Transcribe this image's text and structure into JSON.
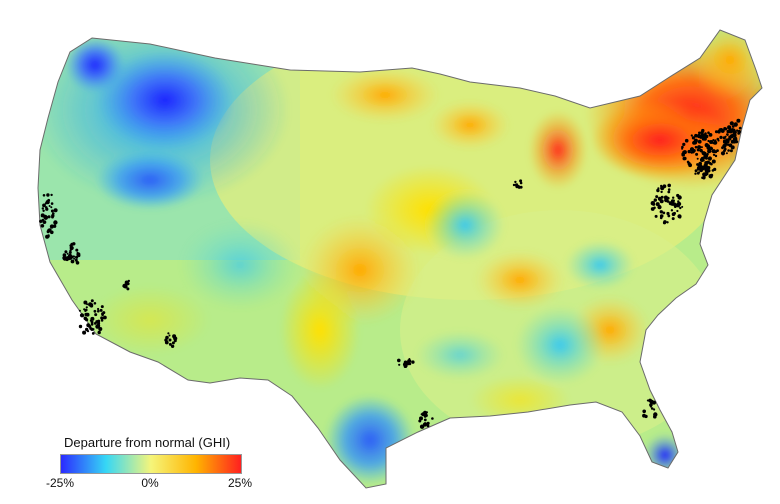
{
  "legend": {
    "title": "Departure from normal (GHI)",
    "ticks": [
      "-25%",
      "0%",
      "25%"
    ],
    "colors": [
      "#2b2bff",
      "#36d7f5",
      "#f5f57a",
      "#ffb400",
      "#ff2020"
    ]
  },
  "map": {
    "subject": "contiguous United States",
    "value_range_percent": [
      -25,
      25
    ],
    "features": {
      "solar_site_markers": "black dots",
      "state_outline_color": "#6b6b6b"
    },
    "notable_regions": [
      {
        "region": "northwest (Washington/Idaho/Montana)",
        "departure": "about -20% to -25%"
      },
      {
        "region": "northeast (New York/New England)",
        "departure": "about +20% to +25%"
      },
      {
        "region": "southern Texas",
        "departure": "about -15%"
      },
      {
        "region": "southern Florida",
        "departure": "about -20%"
      },
      {
        "region": "central plains",
        "departure": "about +10%"
      }
    ]
  }
}
